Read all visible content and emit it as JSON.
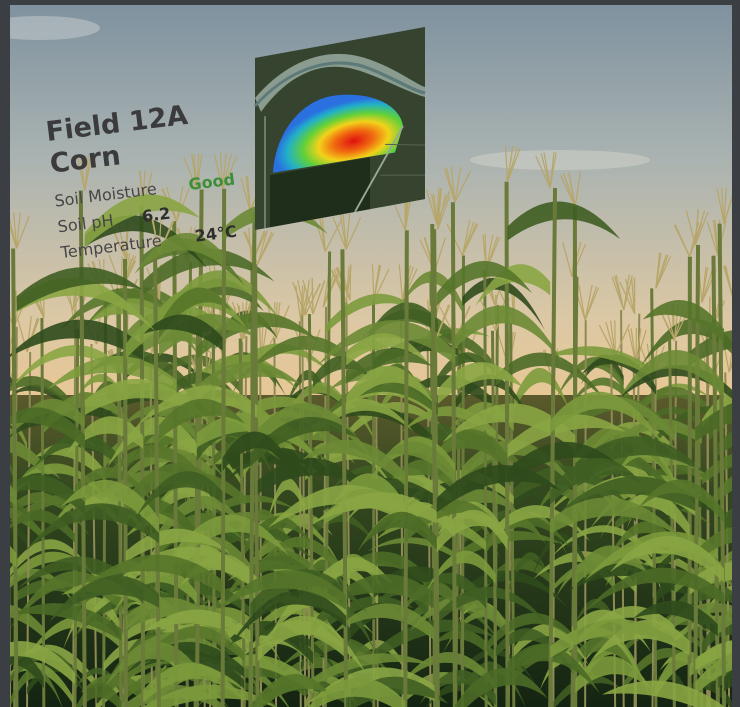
{
  "field": {
    "name": "Field 12A",
    "crop": "Corn"
  },
  "metrics": [
    {
      "label": "Soil Moisture",
      "value": "Good"
    },
    {
      "label": "Soil pH",
      "value": "6.2"
    },
    {
      "label": "Temperature",
      "value": "24°C"
    }
  ]
}
